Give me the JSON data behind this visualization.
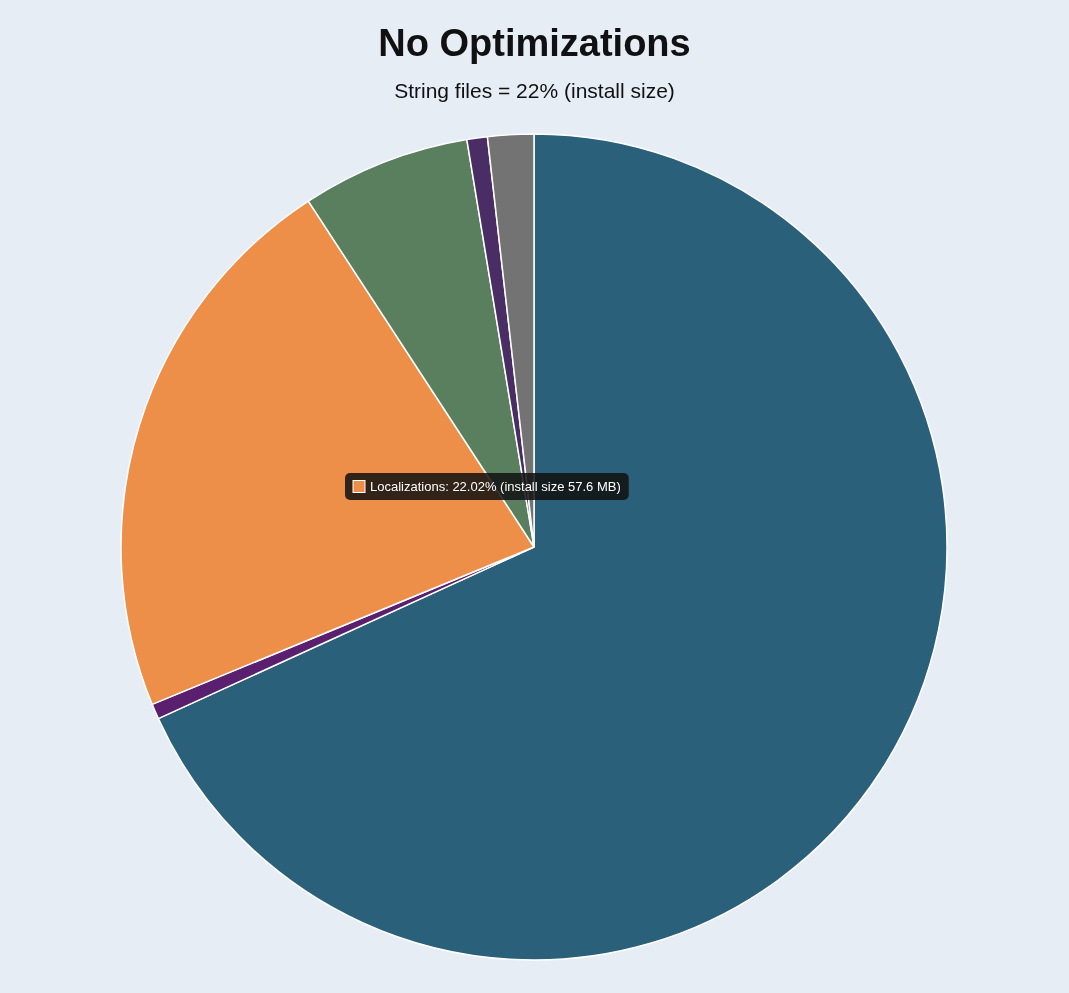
{
  "chart_data": {
    "type": "pie",
    "title": "No Optimizations",
    "subtitle": "String files = 22% (install size)",
    "categories": [
      null,
      null,
      null,
      null,
      null,
      null
    ],
    "values": [
      68.18,
      0.6,
      22.02,
      6.6,
      0.8,
      1.8
    ],
    "colors": [
      "#2a6079",
      "#5a1f6e",
      "#ee8f49",
      "#5a7f5f",
      "#4a2d65",
      "#737373"
    ],
    "annotations": [
      "Localizations: 22.02% (install size 57.6 MB)"
    ]
  }
}
